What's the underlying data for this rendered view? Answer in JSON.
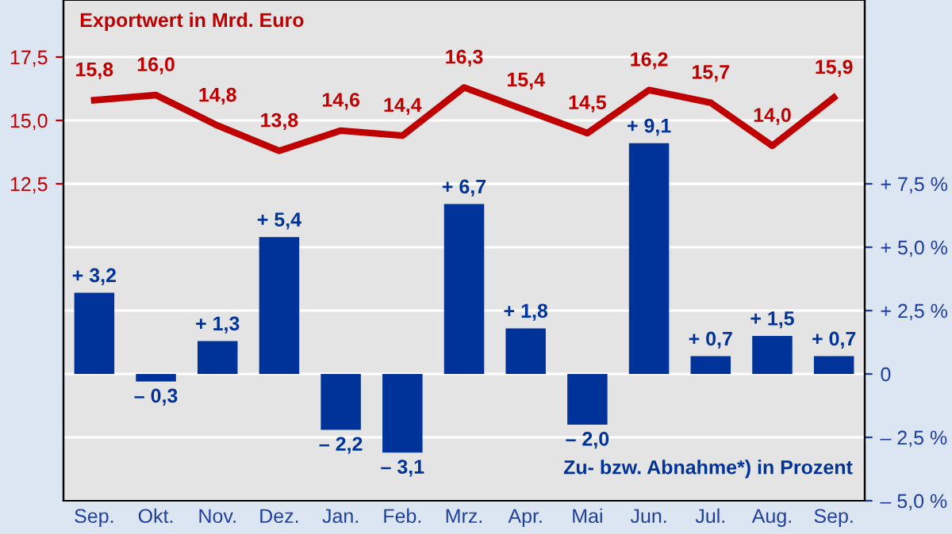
{
  "chart_data": {
    "type": "bar",
    "categories": [
      "Sep.",
      "Okt.",
      "Nov.",
      "Dez.",
      "Jan.",
      "Feb.",
      "Mrz.",
      "Apr.",
      "Mai",
      "Jun.",
      "Jul.",
      "Aug.",
      "Sep."
    ],
    "series": [
      {
        "name": "Exportwert in Mrd. Euro",
        "type": "line",
        "axis": "y",
        "color": "#c00000",
        "values": [
          15.8,
          16.0,
          14.8,
          13.8,
          14.6,
          14.4,
          16.3,
          15.4,
          14.5,
          16.2,
          15.7,
          14.0,
          15.9
        ],
        "value_labels": [
          "15,8",
          "16,0",
          "14,8",
          "13,8",
          "14,6",
          "14,4",
          "16,3",
          "15,4",
          "14,5",
          "16,2",
          "15,7",
          "14,0",
          "15,9"
        ]
      },
      {
        "name": "Zu- bzw. Abnahme*) in Prozent",
        "axis": "y2",
        "color": "#003399",
        "values": [
          3.2,
          -0.3,
          1.3,
          5.4,
          -2.2,
          -3.1,
          6.7,
          1.8,
          -2.0,
          9.1,
          0.7,
          1.5,
          0.7
        ],
        "value_labels": [
          "+ 3,2",
          "– 0,3",
          "+ 1,3",
          "+ 5,4",
          "– 2,2",
          "– 3,1",
          "+ 6,7",
          "+ 1,8",
          "– 2,0",
          "+ 9,1",
          "+ 0,7",
          "+ 1,5",
          "+ 0,7"
        ]
      }
    ],
    "ylim": [
      0,
      19.75
    ],
    "yticks": [
      {
        "value": 12.5,
        "label": "12,5"
      },
      {
        "value": 15.0,
        "label": "15,0"
      },
      {
        "value": 17.5,
        "label": "17,5"
      }
    ],
    "y2lim": [
      -5,
      14.75
    ],
    "y2ticks": [
      {
        "value": -5,
        "label": "– 5,0 %"
      },
      {
        "value": -2.5,
        "label": "– 2,5 %"
      },
      {
        "value": 0,
        "label": "0"
      },
      {
        "value": 2.5,
        "label": "+ 2,5 %"
      },
      {
        "value": 5,
        "label": "+ 5,0 %"
      },
      {
        "value": 7.5,
        "label": "+ 7,5 %"
      }
    ],
    "grid": "y",
    "line_style": "solid",
    "marker": "none",
    "legend": false
  }
}
